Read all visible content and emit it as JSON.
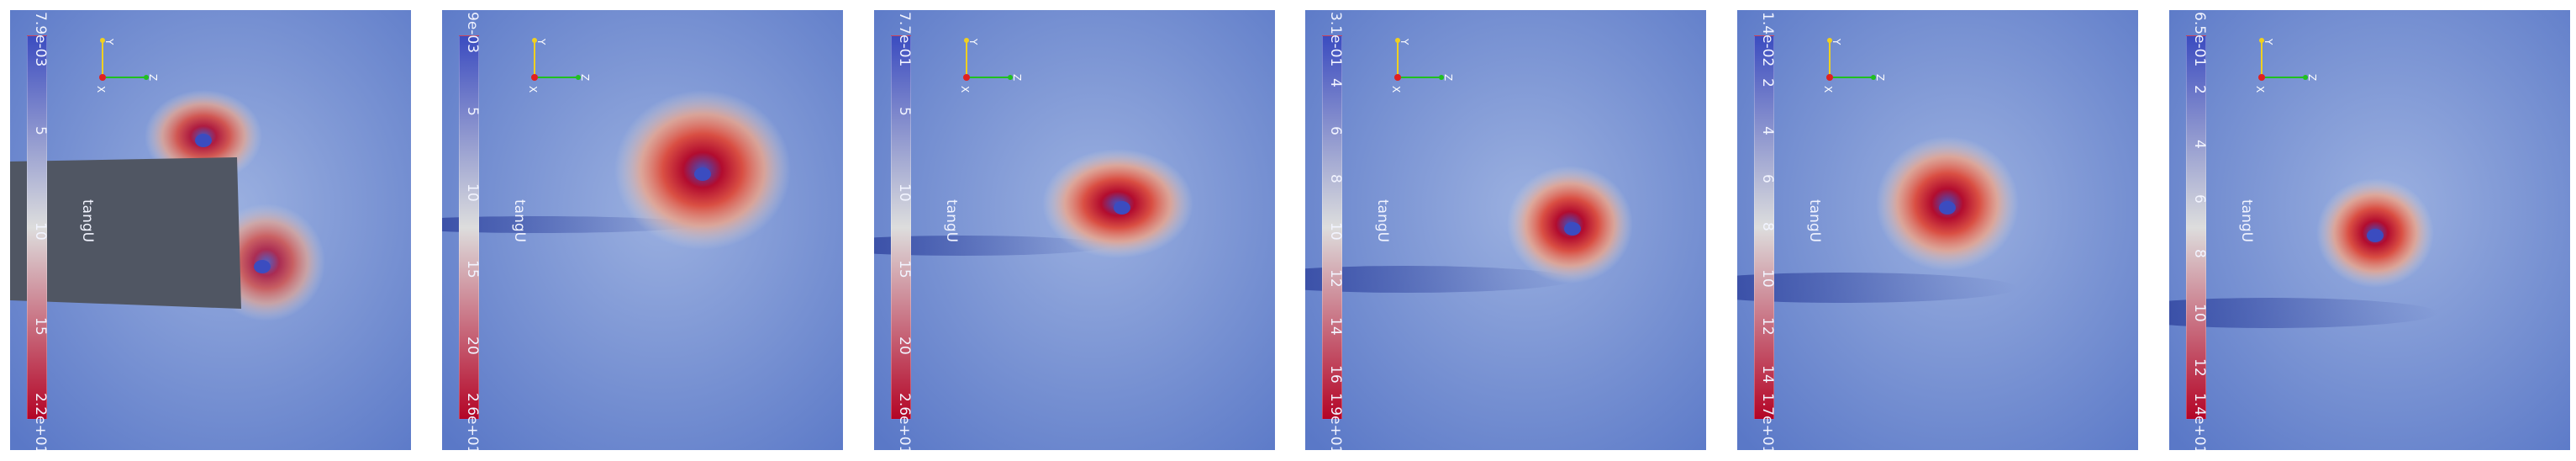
{
  "colors": {
    "low": "#3b4cc0",
    "mid": "#dddddd",
    "high": "#b40426",
    "background": "#5a78c7",
    "obstacle": "#505663",
    "axis_x": "#e02020",
    "axis_y": "#f0d020",
    "axis_z": "#20c020"
  },
  "panels": [
    {
      "cbar_top": "7.9e-03",
      "cbar_bottom": "2.2e+01",
      "ticks": [
        "5",
        "10",
        "15"
      ],
      "title": "tangU",
      "axes": {
        "y": "Y",
        "x": "X",
        "z": "Z"
      },
      "has_obstacle": true
    },
    {
      "cbar_top": "9e-03",
      "cbar_bottom": "2.6e+01",
      "ticks": [
        "5",
        "10",
        "15",
        "20"
      ],
      "title": "tangU",
      "axes": {
        "y": "Y",
        "x": "X",
        "z": "Z"
      },
      "has_obstacle": false
    },
    {
      "cbar_top": "7.7e-01",
      "cbar_bottom": "2.6e+01",
      "ticks": [
        "5",
        "10",
        "15",
        "20"
      ],
      "title": "tangU",
      "axes": {
        "y": "Y",
        "x": "X",
        "z": "Z"
      },
      "has_obstacle": false
    },
    {
      "cbar_top": "3.1e-01",
      "cbar_bottom": "1.9e+01",
      "ticks": [
        "4",
        "6",
        "8",
        "10",
        "12",
        "14",
        "16"
      ],
      "title": "tangU",
      "axes": {
        "y": "Y",
        "x": "X",
        "z": "Z"
      },
      "has_obstacle": false
    },
    {
      "cbar_top": "1.4e-02",
      "cbar_bottom": "1.7e+01",
      "ticks": [
        "2",
        "4",
        "6",
        "8",
        "10",
        "12",
        "14"
      ],
      "title": "tangU",
      "axes": {
        "y": "Y",
        "x": "X",
        "z": "Z"
      },
      "has_obstacle": false
    },
    {
      "cbar_top": "6.5e-01",
      "cbar_bottom": "1.4e+01",
      "ticks": [
        "2",
        "4",
        "6",
        "8",
        "10",
        "12"
      ],
      "title": "tangU",
      "axes": {
        "y": "Y",
        "x": "X",
        "z": "Z"
      },
      "has_obstacle": false
    }
  ]
}
